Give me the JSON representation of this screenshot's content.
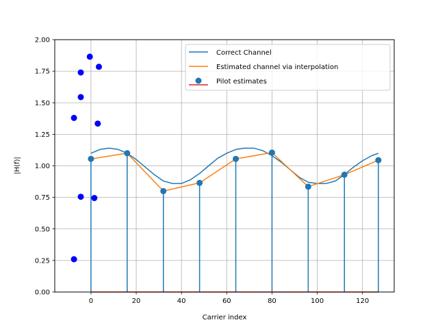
{
  "chart_data": {
    "type": "line",
    "title": "",
    "xlabel": "Carrier index",
    "ylabel": "|H(f)|",
    "xlim": [
      -16,
      134
    ],
    "ylim": [
      0,
      2.0
    ],
    "x_ticks": [
      0,
      20,
      40,
      60,
      80,
      100,
      120
    ],
    "y_ticks": [
      0.0,
      0.25,
      0.5,
      0.75,
      1.0,
      1.25,
      1.5,
      1.75,
      2.0
    ],
    "y_tick_labels": [
      "0.00",
      "0.25",
      "0.50",
      "0.75",
      "1.00",
      "1.25",
      "1.50",
      "1.75",
      "2.00"
    ],
    "grid": true,
    "legend_location": "upper right",
    "colors": {
      "correct_channel": "#1f77b4",
      "estimated_channel": "#ff7f0e",
      "pilot_estimates": "#1f77b4",
      "stem_baseline": "#d62728",
      "blue_markers": "#0000ff"
    },
    "series": [
      {
        "name": "Correct Channel",
        "kind": "line",
        "x": [
          0,
          4,
          8,
          12,
          16,
          20,
          24,
          28,
          32,
          36,
          40,
          44,
          48,
          52,
          56,
          60,
          64,
          68,
          72,
          76,
          80,
          84,
          88,
          92,
          96,
          100,
          104,
          108,
          112,
          116,
          120,
          124,
          127
        ],
        "y": [
          1.1,
          1.13,
          1.14,
          1.13,
          1.1,
          1.05,
          0.99,
          0.93,
          0.88,
          0.86,
          0.86,
          0.89,
          0.94,
          1.0,
          1.06,
          1.1,
          1.13,
          1.14,
          1.14,
          1.12,
          1.08,
          1.03,
          0.97,
          0.91,
          0.87,
          0.86,
          0.86,
          0.88,
          0.93,
          0.99,
          1.04,
          1.08,
          1.1
        ]
      },
      {
        "name": "Estimated channel via interpolation",
        "kind": "line",
        "x": [
          0,
          16,
          32,
          48,
          64,
          80,
          96,
          112,
          127
        ],
        "y": [
          1.055,
          1.1,
          0.8,
          0.865,
          1.055,
          1.105,
          0.835,
          0.93,
          1.045
        ]
      },
      {
        "name": "Pilot estimates",
        "kind": "stem",
        "x": [
          0,
          16,
          32,
          48,
          64,
          80,
          96,
          112,
          127
        ],
        "y": [
          1.055,
          1.1,
          0.8,
          0.865,
          1.055,
          1.105,
          0.835,
          0.93,
          1.045
        ]
      },
      {
        "kind": "scatter",
        "x": [
          -0.5,
          3.5,
          -4.5,
          -4.5,
          -7.5,
          3,
          -4.5,
          1.5,
          -7.5
        ],
        "y": [
          1.865,
          1.785,
          1.74,
          1.545,
          1.38,
          1.335,
          0.755,
          0.745,
          0.26
        ]
      }
    ]
  }
}
